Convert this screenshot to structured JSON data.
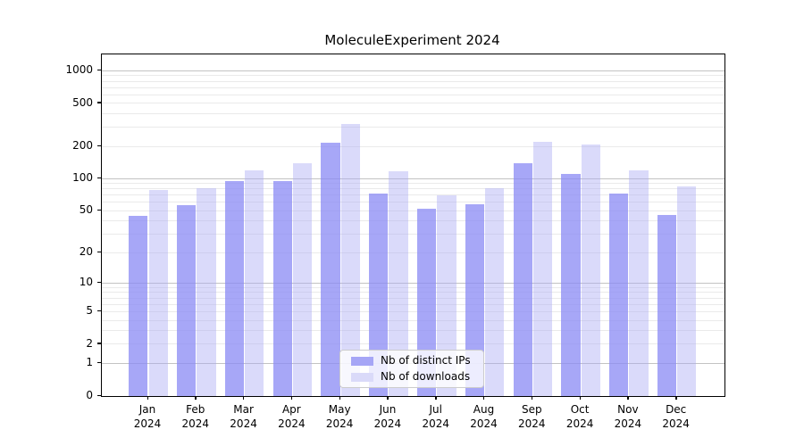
{
  "figure": {
    "background": "#ffffff"
  },
  "chart_data": {
    "type": "bar",
    "title": "MoleculeExperiment 2024",
    "categories": [
      "Jan 2024",
      "Feb 2024",
      "Mar 2024",
      "Apr 2024",
      "May 2024",
      "Jun 2024",
      "Jul 2024",
      "Aug 2024",
      "Sep 2024",
      "Oct 2024",
      "Nov 2024",
      "Dec 2024"
    ],
    "series": [
      {
        "name": "Nb of distinct IPs",
        "color": "rgba(137,137,244,0.75)",
        "color_flat": "#a6a6f6",
        "values": [
          45,
          57,
          95,
          95,
          216,
          73,
          52,
          58,
          140,
          111,
          73,
          46
        ]
      },
      {
        "name": "Nb of downloads",
        "color": "rgba(169,169,243,0.43)",
        "color_flat": "#dadaf9",
        "values": [
          79,
          82,
          120,
          140,
          324,
          118,
          70,
          82,
          221,
          208,
          120,
          85
        ]
      }
    ],
    "xlabel": "",
    "ylabel": "",
    "yscale": "symlog-log1p",
    "ylim": [
      0,
      1413
    ],
    "y_ticks": [
      0,
      1,
      2,
      5,
      10,
      20,
      50,
      100,
      200,
      500,
      1000
    ],
    "major_gridlines": [
      1,
      10,
      100,
      1000
    ],
    "minor_gridlines": [
      2,
      3,
      4,
      5,
      6,
      7,
      8,
      9,
      20,
      30,
      40,
      50,
      60,
      70,
      80,
      90,
      200,
      300,
      400,
      500,
      600,
      700,
      800,
      900
    ],
    "grid": "on",
    "legend_position": "lower center inside"
  },
  "legend": {
    "entries": [
      {
        "label": "Nb of distinct IPs"
      },
      {
        "label": "Nb of downloads"
      }
    ]
  },
  "colors": {
    "grid_major": "#c3c3c3",
    "grid_minor": "#eaeaea",
    "axis": "#000000",
    "legend_border": "#cccccc",
    "legend_background": "rgba(255,255,255,0.8)"
  }
}
